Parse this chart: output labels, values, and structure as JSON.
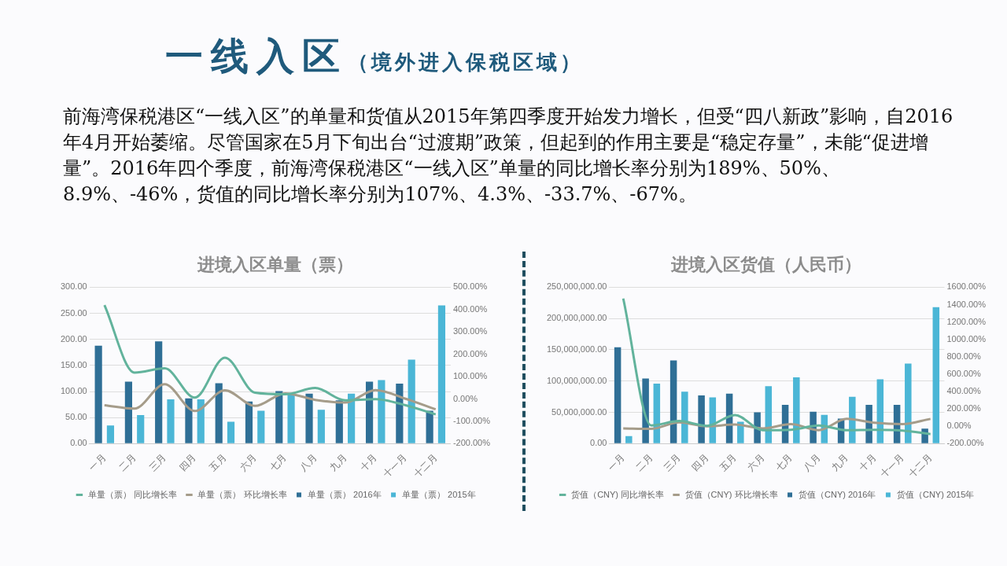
{
  "chart_data": [
    {
      "type": "other",
      "title": "一线入区",
      "subtitle": "（境外进入保税区域）",
      "annotations": [
        "前海湾保税港区“一线入区”的单量和货值从2015年第四季度开始发力增长，但受“四八新政”影响，自2016年4月开始萎缩。尽管国家在5月下旬出台“过渡期”政策，但起到的作用主要是“稳定存量”，未能“促进增量”。2016年四个季度，前海湾保税港区“一线入区”单量的同比增长率分别为189%、50%、8.9%、-46%，货值的同比增长率分别为107%、4.3%、-33.7%、-67%。"
      ]
    },
    {
      "type": "bar",
      "title": "进境入区单量（票）",
      "categories": [
        "一月",
        "二月",
        "三月",
        "四月",
        "五月",
        "六月",
        "七月",
        "八月",
        "九月",
        "十月",
        "十一月",
        "十二月"
      ],
      "series": [
        {
          "name": "单量（票） 2016年",
          "color": "#2f6f96",
          "values": [
            188,
            119,
            196,
            87,
            116,
            81,
            101,
            96,
            83,
            119,
            115,
            63
          ]
        },
        {
          "name": "单量（票） 2015年",
          "color": "#4bb6d6",
          "values": [
            35,
            55,
            85,
            85,
            42,
            63,
            96,
            65,
            96,
            122,
            161,
            265
          ]
        },
        {
          "name": "单量（票） 同比增长率",
          "type": "line",
          "axis": "y2",
          "color": "#62b39c",
          "values": [
            420,
            118,
            137,
            6,
            185,
            28,
            21,
            49,
            -6,
            -1,
            -28,
            -69
          ]
        },
        {
          "name": "单量（票） 环比增长率",
          "type": "line",
          "axis": "y2",
          "color": "#a59c8a",
          "values": [
            -28,
            -43,
            66,
            -54,
            39,
            -31,
            25,
            -4,
            -16,
            40,
            1,
            -46
          ]
        }
      ],
      "ylim": [
        0,
        300
      ],
      "yticks": [
        {
          "value": 0,
          "label": "0.00"
        },
        {
          "value": 50,
          "label": "50.00"
        },
        {
          "value": 100,
          "label": "100.00"
        },
        {
          "value": 150,
          "label": "150.00"
        },
        {
          "value": 200,
          "label": "200.00"
        },
        {
          "value": 250,
          "label": "250.00"
        },
        {
          "value": 300,
          "label": "300.00"
        }
      ],
      "y2lim": [
        -200,
        500
      ],
      "y2ticks": [
        {
          "value": -200,
          "label": "-200.00%"
        },
        {
          "value": -100,
          "label": "-100.00%"
        },
        {
          "value": 0,
          "label": "0.00%"
        },
        {
          "value": 100,
          "label": "100.00%"
        },
        {
          "value": 200,
          "label": "200.00%"
        },
        {
          "value": 300,
          "label": "300.00%"
        },
        {
          "value": 400,
          "label": "400.00%"
        },
        {
          "value": 500,
          "label": "500.00%"
        }
      ],
      "grid": "y",
      "legend": "bottom",
      "marker": "none"
    },
    {
      "type": "bar",
      "title": "进境入区货值（人民币）",
      "categories": [
        "一月",
        "二月",
        "三月",
        "四月",
        "五月",
        "六月",
        "七月",
        "八月",
        "九月",
        "十月",
        "十一月",
        "十二月"
      ],
      "series": [
        {
          "name": "货值（CNY) 2016年",
          "color": "#2f6f96",
          "values": [
            154000000,
            104000000,
            133000000,
            77000000,
            80000000,
            50000000,
            62000000,
            51000000,
            40000000,
            62000000,
            62000000,
            24000000
          ]
        },
        {
          "name": "货值（CNY) 2015年",
          "color": "#4bb6d6",
          "values": [
            12000000,
            96000000,
            83000000,
            74000000,
            35000000,
            92000000,
            106000000,
            46000000,
            75000000,
            103000000,
            128000000,
            218000000
          ]
        },
        {
          "name": "货值（CNY) 同比增长率",
          "type": "line",
          "axis": "y2",
          "color": "#62b39c",
          "values": [
            1470,
            10,
            60,
            5,
            130,
            -45,
            -40,
            10,
            -45,
            -40,
            -50,
            -90
          ]
        },
        {
          "name": "货值（CNY) 环比增长率",
          "type": "line",
          "axis": "y2",
          "color": "#a59c8a",
          "values": [
            -25,
            -30,
            45,
            0,
            20,
            -25,
            25,
            -45,
            85,
            40,
            25,
            85
          ]
        }
      ],
      "ylim": [
        0,
        250000000
      ],
      "yticks": [
        {
          "value": 0,
          "label": "0.00"
        },
        {
          "value": 50000000,
          "label": "50,000,000.00"
        },
        {
          "value": 100000000,
          "label": "100,000,000.00"
        },
        {
          "value": 150000000,
          "label": "150,000,000.00"
        },
        {
          "value": 200000000,
          "label": "200,000,000.00"
        },
        {
          "value": 250000000,
          "label": "250,000,000.00"
        }
      ],
      "y2lim": [
        -200,
        1600
      ],
      "y2ticks": [
        {
          "value": -200,
          "label": "-200.00%"
        },
        {
          "value": 0,
          "label": "0.00%"
        },
        {
          "value": 200,
          "label": "200.00%"
        },
        {
          "value": 400,
          "label": "400.00%"
        },
        {
          "value": 600,
          "label": "600.00%"
        },
        {
          "value": 800,
          "label": "800.00%"
        },
        {
          "value": 1000,
          "label": "1000.00%"
        },
        {
          "value": 1200,
          "label": "1200.00%"
        },
        {
          "value": 1400,
          "label": "1400.00%"
        },
        {
          "value": 1600,
          "label": "1600.00%"
        }
      ],
      "grid": "y",
      "legend": "bottom",
      "marker": "none"
    }
  ]
}
